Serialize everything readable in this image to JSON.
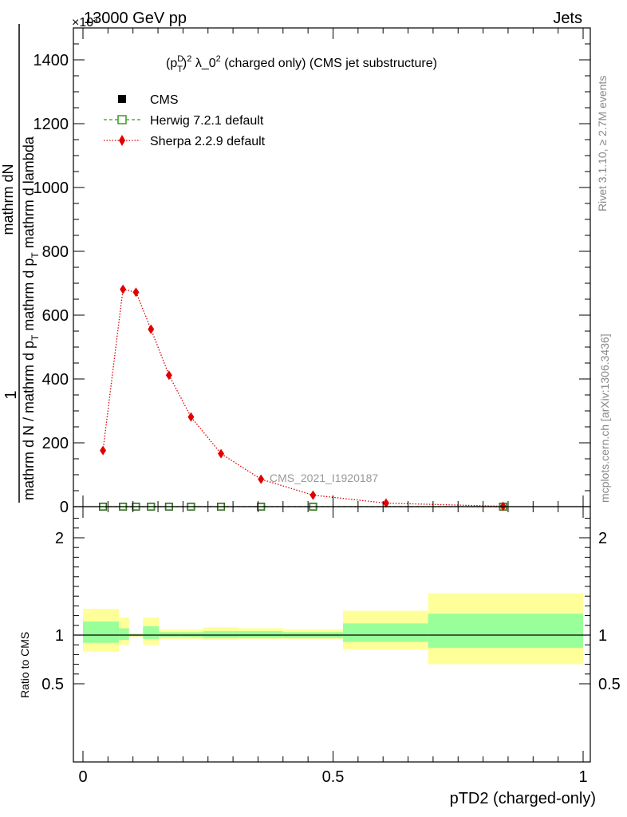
{
  "header": {
    "energy_label": "13000 GeV pp",
    "process_label": "Jets",
    "exponent_label": "×10³",
    "rivet_label": "Rivet 3.1.10, ≥ 2.7M events",
    "mcplots_label": "mcplots.cern.ch [arXiv:1306.3436]"
  },
  "chart_data": [
    {
      "type": "line",
      "title_main": "(p",
      "title_sup": "D",
      "title_sub": "T",
      "title_rest": ")",
      "title_sq": "2",
      "title_tail": " λ_0",
      "title_sq2": "2",
      "title_end": " (charged only) (CMS jet substructure)",
      "ylabel_pre": "1",
      "ylabel_num": "mathrm dN",
      "ylabel_den1": "mathrm d N / mathrm d p",
      "ylabel_den1_sub": "T",
      "ylabel_den2": " mathrm d p",
      "ylabel_den2_sub": "T",
      "ylabel_den3": " mathrm d lambda",
      "xlim": [
        0,
        1
      ],
      "ylim": [
        0,
        1500
      ],
      "y_scale_factor": 1000,
      "y_ticks": [
        0,
        200,
        400,
        600,
        800,
        1000,
        1200,
        1400
      ],
      "y_tick_labels": [
        "0",
        "200",
        "400",
        "600",
        "800",
        "1000",
        "1200",
        "1400"
      ],
      "watermark": "CMS_2021_I1920187",
      "legend": {
        "placement": "top-left",
        "entries": [
          {
            "label": "CMS",
            "marker": "square",
            "color": "#000000"
          },
          {
            "label": "Herwig 7.2.1 default",
            "marker": "open-square",
            "color": "#3a9a1e"
          },
          {
            "label": "Sherpa 2.2.9 default",
            "marker": "diamond",
            "color": "#e00000"
          }
        ]
      },
      "series": [
        {
          "name": "CMS",
          "color": "#000000",
          "x": [
            0.04,
            0.08,
            0.106,
            0.136,
            0.172,
            0.216,
            0.276,
            0.356,
            0.46,
            0.84
          ],
          "y": [
            0,
            0,
            0,
            0,
            0,
            0,
            0,
            0,
            0,
            0
          ]
        },
        {
          "name": "Herwig 7.2.1 default",
          "color": "#3a9a1e",
          "x": [
            0.04,
            0.08,
            0.106,
            0.136,
            0.172,
            0.216,
            0.276,
            0.356,
            0.46,
            0.84
          ],
          "y": [
            0,
            0,
            0,
            0,
            0,
            0,
            0,
            0,
            0,
            0
          ]
        },
        {
          "name": "Sherpa 2.2.9 default",
          "color": "#e00000",
          "x": [
            0.04,
            0.08,
            0.106,
            0.136,
            0.172,
            0.216,
            0.276,
            0.356,
            0.46,
            0.606,
            0.84
          ],
          "y": [
            176,
            681,
            672,
            556,
            412,
            281,
            166,
            86,
            36,
            11,
            1
          ]
        }
      ]
    },
    {
      "type": "area",
      "ylabel": "Ratio to CMS",
      "xlabel": "pTD2 (charged-only)",
      "xlim": [
        0,
        1
      ],
      "ylim": [
        0.4,
        2.3
      ],
      "x_ticks": [
        0,
        0.5,
        1
      ],
      "x_tick_labels": [
        "0",
        "0.5",
        "1"
      ],
      "y_ticks": [
        0.5,
        1,
        2
      ],
      "y_tick_labels": [
        "0.5",
        "1",
        "2"
      ],
      "reference_line": 1,
      "band_colors": {
        "outer": "#ffff99",
        "inner": "#99ff99"
      },
      "bands": [
        {
          "x0": 0.0,
          "x1": 0.072,
          "outer": [
            0.83,
            1.27
          ],
          "inner": [
            0.92,
            1.14
          ]
        },
        {
          "x0": 0.072,
          "x1": 0.092,
          "outer": [
            0.9,
            1.18
          ],
          "inner": [
            0.95,
            1.07
          ]
        },
        {
          "x0": 0.092,
          "x1": 0.12,
          "outer": [
            0.98,
            1.02
          ],
          "inner": [
            0.99,
            1.01
          ]
        },
        {
          "x0": 0.12,
          "x1": 0.152,
          "outer": [
            0.9,
            1.18
          ],
          "inner": [
            0.96,
            1.09
          ]
        },
        {
          "x0": 0.152,
          "x1": 0.192,
          "outer": [
            0.96,
            1.06
          ],
          "inner": [
            0.98,
            1.03
          ]
        },
        {
          "x0": 0.192,
          "x1": 0.24,
          "outer": [
            0.96,
            1.06
          ],
          "inner": [
            0.98,
            1.03
          ]
        },
        {
          "x0": 0.24,
          "x1": 0.312,
          "outer": [
            0.95,
            1.08
          ],
          "inner": [
            0.97,
            1.04
          ]
        },
        {
          "x0": 0.312,
          "x1": 0.4,
          "outer": [
            0.96,
            1.07
          ],
          "inner": [
            0.97,
            1.04
          ]
        },
        {
          "x0": 0.4,
          "x1": 0.52,
          "outer": [
            0.96,
            1.06
          ],
          "inner": [
            0.97,
            1.03
          ]
        },
        {
          "x0": 0.52,
          "x1": 0.69,
          "outer": [
            0.85,
            1.25
          ],
          "inner": [
            0.93,
            1.12
          ]
        },
        {
          "x0": 0.69,
          "x1": 1.0,
          "outer": [
            0.7,
            1.43
          ],
          "inner": [
            0.87,
            1.22
          ]
        }
      ]
    }
  ]
}
